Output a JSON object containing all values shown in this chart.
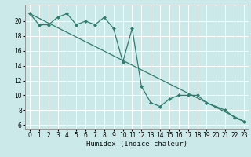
{
  "xlabel": "Humidex (Indice chaleur)",
  "bg_color": "#cce9e9",
  "grid_color": "#ffffff",
  "line_color": "#2e7d6e",
  "xlim": [
    -0.5,
    23.5
  ],
  "ylim": [
    5.5,
    22.2
  ],
  "xticks": [
    0,
    1,
    2,
    3,
    4,
    5,
    6,
    7,
    8,
    9,
    10,
    11,
    12,
    13,
    14,
    15,
    16,
    17,
    18,
    19,
    20,
    21,
    22,
    23
  ],
  "yticks": [
    6,
    8,
    10,
    12,
    14,
    16,
    18,
    20
  ],
  "line1_x": [
    0,
    1,
    2,
    3,
    4,
    5,
    6,
    7,
    8,
    9,
    10,
    11,
    12,
    13,
    14,
    15,
    16,
    17,
    18,
    19,
    20,
    21,
    22,
    23
  ],
  "line1_y": [
    21.0,
    19.5,
    19.5,
    20.5,
    21.0,
    19.5,
    20.0,
    19.5,
    20.5,
    19.0,
    14.5,
    19.0,
    11.2,
    9.0,
    8.5,
    9.5,
    10.0,
    10.0,
    10.0,
    9.0,
    8.5,
    8.0,
    7.0,
    6.5
  ],
  "trend_x": [
    0,
    23
  ],
  "trend_y": [
    21.0,
    6.5
  ]
}
